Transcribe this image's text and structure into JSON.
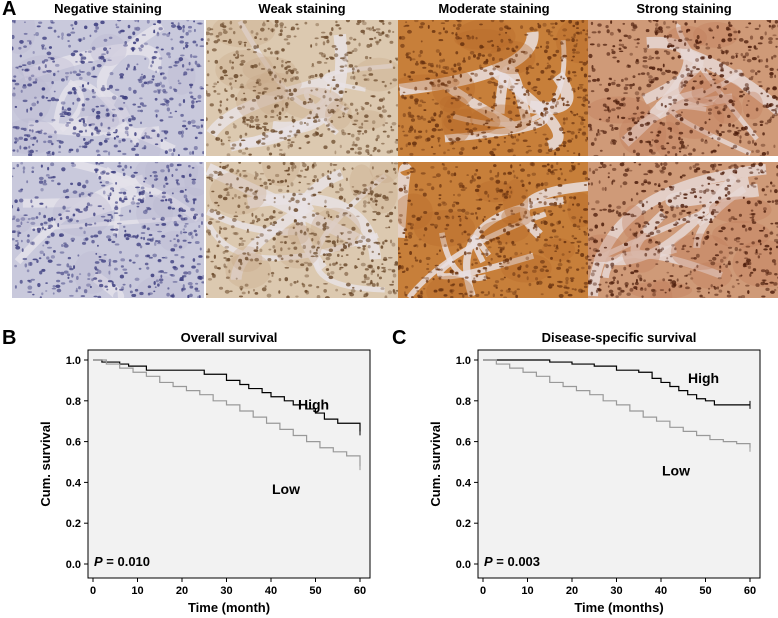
{
  "panel_labels": {
    "a": "A",
    "b": "B",
    "c": "C"
  },
  "staining": {
    "columns": [
      "Negative staining",
      "Weak staining",
      "Moderate staining",
      "Strong staining"
    ],
    "palettes": [
      {
        "bg": "#c9c9dc",
        "stroma": "#e4e2ea",
        "nucleus": "#3e3f80",
        "tint": "#b9b6d2"
      },
      {
        "bg": "#dcc9b0",
        "stroma": "#e8e2e4",
        "nucleus": "#6b4a2c",
        "tint": "#c9a98a"
      },
      {
        "bg": "#c77f3a",
        "stroma": "#e9dfe0",
        "nucleus": "#6a3310",
        "tint": "#b86a2a"
      },
      {
        "bg": "#cf9a78",
        "stroma": "#e6d7d3",
        "nucleus": "#4e1e0c",
        "tint": "#c07b5a"
      }
    ]
  },
  "chart_data": [
    {
      "type": "line",
      "panel": "B",
      "title": "Overall survival",
      "xlabel": "Time (month)",
      "ylabel": "Cum. survival",
      "xlim": [
        0,
        60
      ],
      "ylim": [
        0.0,
        1.0
      ],
      "xticks": [
        "0",
        "10",
        "20",
        "30",
        "40",
        "50",
        "60"
      ],
      "yticks": [
        "0.0",
        "0.2",
        "0.4",
        "0.6",
        "0.8",
        "1.0"
      ],
      "pvalue_label": "P",
      "pvalue_text": " = 0.010",
      "series": [
        {
          "name": "High",
          "color": "#000000",
          "x": [
            0,
            2,
            6,
            8,
            12,
            20,
            25,
            30,
            33,
            35,
            38,
            40,
            43,
            45,
            48,
            50,
            52,
            55,
            60
          ],
          "y": [
            1.0,
            0.99,
            0.98,
            0.97,
            0.95,
            0.95,
            0.93,
            0.9,
            0.88,
            0.86,
            0.84,
            0.82,
            0.8,
            0.78,
            0.76,
            0.74,
            0.71,
            0.69,
            0.65
          ]
        },
        {
          "name": "Low",
          "color": "#999999",
          "x": [
            0,
            3,
            6,
            9,
            12,
            15,
            18,
            21,
            24,
            27,
            30,
            33,
            36,
            39,
            42,
            45,
            48,
            51,
            54,
            57,
            60
          ],
          "y": [
            1.0,
            0.98,
            0.96,
            0.94,
            0.92,
            0.89,
            0.87,
            0.85,
            0.83,
            0.8,
            0.78,
            0.75,
            0.72,
            0.69,
            0.66,
            0.63,
            0.6,
            0.57,
            0.55,
            0.53,
            0.48
          ]
        }
      ]
    },
    {
      "type": "line",
      "panel": "C",
      "title": "Disease-specific survival",
      "xlabel": "Time (months)",
      "ylabel": "Cum. survival",
      "xlim": [
        0,
        60
      ],
      "ylim": [
        0.0,
        1.0
      ],
      "xticks": [
        "0",
        "10",
        "20",
        "30",
        "40",
        "50",
        "60"
      ],
      "yticks": [
        "0.0",
        "0.2",
        "0.4",
        "0.6",
        "0.8",
        "1.0"
      ],
      "pvalue_label": "P",
      "pvalue_text": " = 0.003",
      "series": [
        {
          "name": "High",
          "color": "#000000",
          "x": [
            0,
            10,
            15,
            20,
            25,
            30,
            35,
            38,
            40,
            42,
            44,
            46,
            48,
            50,
            52,
            55,
            60
          ],
          "y": [
            1.0,
            1.0,
            0.99,
            0.98,
            0.97,
            0.95,
            0.94,
            0.91,
            0.89,
            0.87,
            0.85,
            0.83,
            0.81,
            0.8,
            0.78,
            0.78,
            0.78
          ]
        },
        {
          "name": "Low",
          "color": "#999999",
          "x": [
            0,
            3,
            6,
            9,
            12,
            15,
            18,
            21,
            24,
            27,
            30,
            33,
            36,
            39,
            42,
            45,
            48,
            51,
            54,
            57,
            60
          ],
          "y": [
            1.0,
            0.98,
            0.96,
            0.94,
            0.92,
            0.89,
            0.87,
            0.85,
            0.83,
            0.8,
            0.78,
            0.75,
            0.72,
            0.7,
            0.67,
            0.65,
            0.63,
            0.61,
            0.6,
            0.59,
            0.57
          ]
        }
      ]
    }
  ]
}
